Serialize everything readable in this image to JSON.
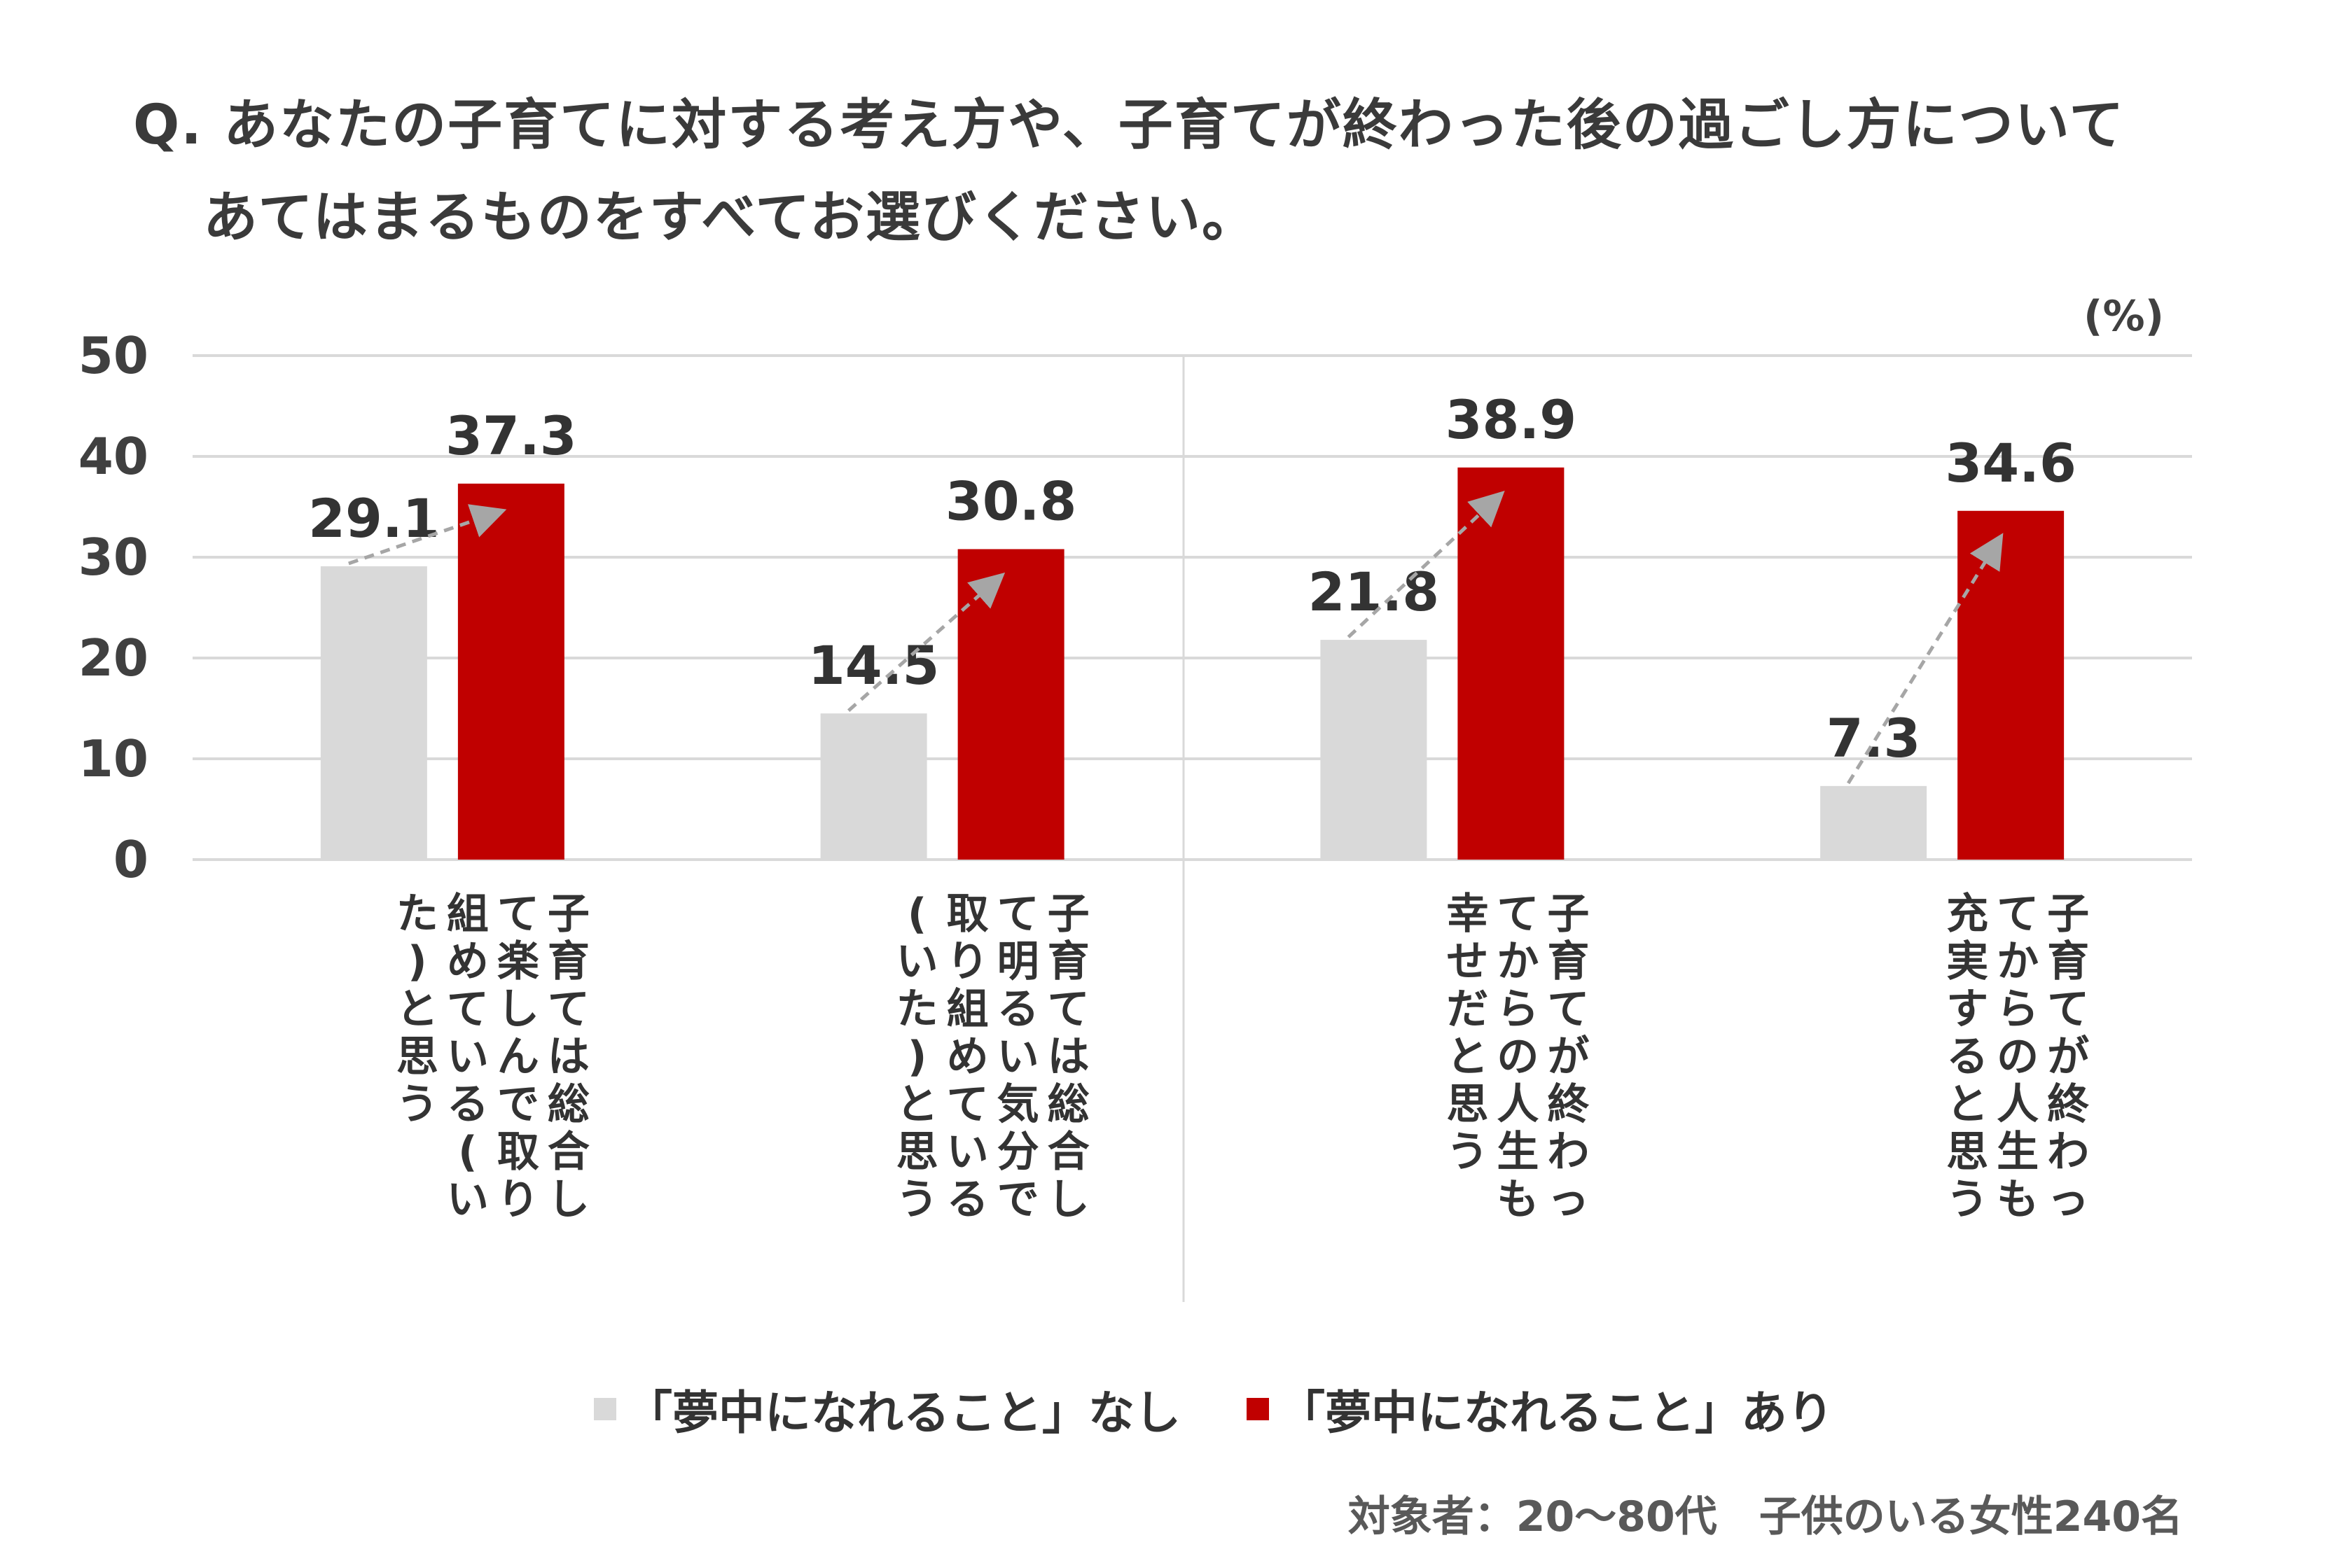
{
  "title": {
    "line1": "Q. あなたの子育てに対する考え方や、子育てが終わった後の過ごし方について",
    "line2": "あてはまるものをすべてお選びください。"
  },
  "footnote": "対象者：20～80代　子供のいる女性240名",
  "colors": {
    "series_without": "#d9d9d9",
    "series_with": "#c00000",
    "grid": "#d9d9d9",
    "arrow": "#a6a6a6",
    "text": "#404040"
  },
  "chart_data": {
    "type": "bar",
    "unit_label": "(%)",
    "ylim": [
      0,
      50
    ],
    "yticks": [
      0,
      10,
      20,
      30,
      40,
      50
    ],
    "grid": true,
    "legend_position": "bottom",
    "categories": [
      "子育ては総合して楽しんで取り組めている(いた)と思う",
      "子育ては総合して明るい気分で取り組めている(いた)と思う",
      "子育てが終わってからの人生も幸せだと思う",
      "子育てが終わってからの人生も充実すると思う"
    ],
    "category_lines": [
      [
        "子育ては総合し",
        "て楽しんで取り",
        "組めている(い",
        "た)と思う"
      ],
      [
        "子育ては総合し",
        "て明るい気分で",
        "取り組めている",
        "(いた)と思う"
      ],
      [
        "子育てが終わっ",
        "てからの人生も",
        "幸せだと思う"
      ],
      [
        "子育てが終わっ",
        "てからの人生も",
        "充実すると思う"
      ]
    ],
    "series": [
      {
        "name": "「夢中になれること」なし",
        "values": [
          29.1,
          14.5,
          21.8,
          7.3
        ]
      },
      {
        "name": "「夢中になれること」あり",
        "values": [
          37.3,
          30.8,
          38.9,
          34.6
        ]
      }
    ]
  }
}
